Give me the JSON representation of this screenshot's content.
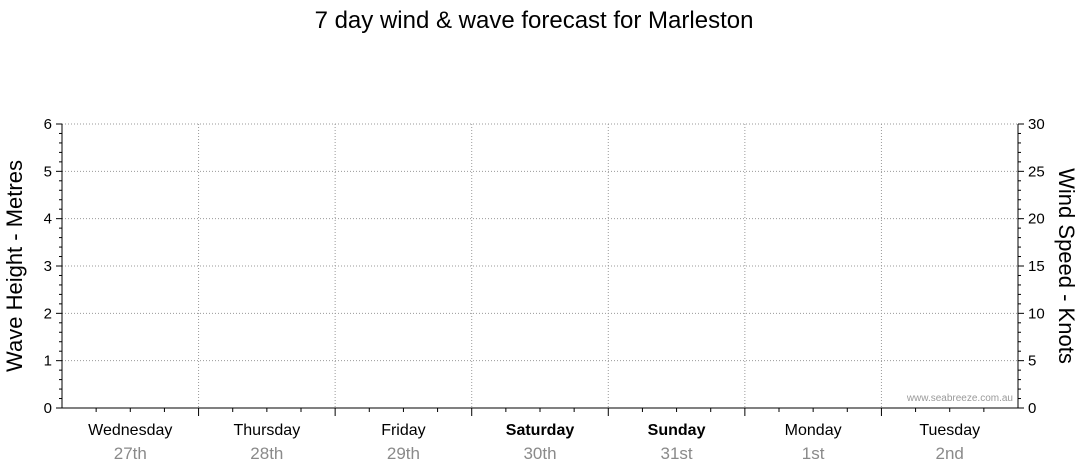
{
  "chart_data": {
    "type": "line",
    "title": "7 day wind & wave forecast for Marleston",
    "ylabel_left": "Wave Height - Metres",
    "ylabel_right": "Wind Speed - Knots",
    "ylim_left": [
      0,
      6
    ],
    "ylim_right": [
      0,
      30
    ],
    "yticks_left": [
      "0",
      "1",
      "2",
      "3",
      "4",
      "5",
      "6"
    ],
    "yticks_right": [
      "0",
      "5",
      "10",
      "15",
      "20",
      "25",
      "30"
    ],
    "grid": true,
    "days": [
      {
        "name": "Wednesday",
        "date": "27th",
        "bold": false
      },
      {
        "name": "Thursday",
        "date": "28th",
        "bold": false
      },
      {
        "name": "Friday",
        "date": "29th",
        "bold": false
      },
      {
        "name": "Saturday",
        "date": "30th",
        "bold": true
      },
      {
        "name": "Sunday",
        "date": "31st",
        "bold": true
      },
      {
        "name": "Monday",
        "date": "1st",
        "bold": false
      },
      {
        "name": "Tuesday",
        "date": "2nd",
        "bold": false
      }
    ],
    "series": []
  },
  "watermark": "www.seabreeze.com.au"
}
